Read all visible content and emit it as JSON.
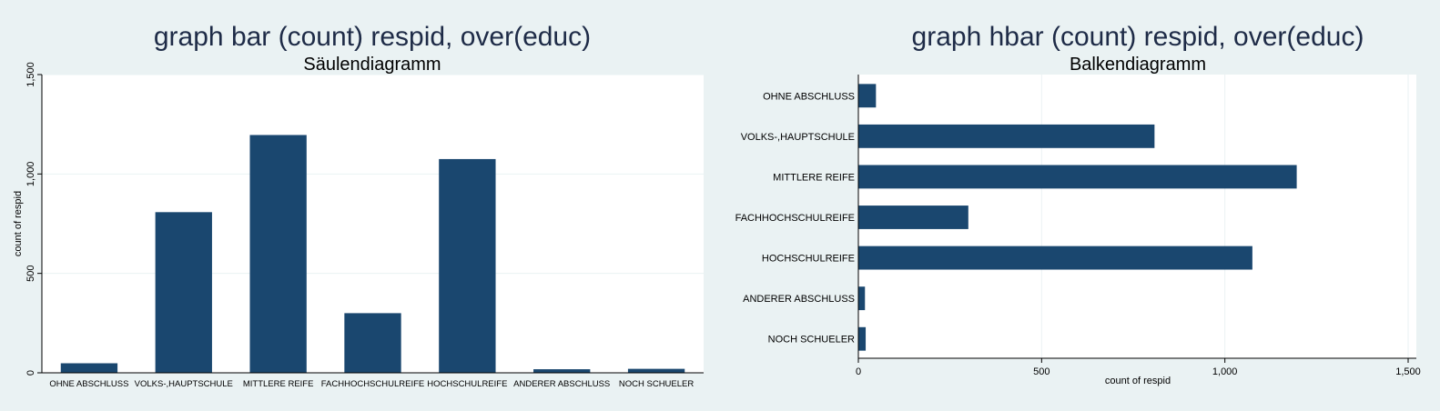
{
  "colors": {
    "background": "#eaf2f3",
    "plot_area": "#ffffff",
    "bar": "#1a476f",
    "grid": "#eaf2f3",
    "axis": "#000000",
    "text": "#000000",
    "title": "#1e2b47"
  },
  "chart_data": [
    {
      "type": "bar",
      "orientation": "vertical",
      "title": "graph bar (count) respid, over(educ)",
      "subtitle": "Säulendiagramm",
      "xlabel": "",
      "ylabel": "count of respid",
      "ylim": [
        0,
        1500
      ],
      "ticks": [
        0,
        500,
        1000,
        1500
      ],
      "tick_labels": [
        "0",
        "500",
        "1,000",
        "1,500"
      ],
      "grid": true,
      "categories": [
        "OHNE ABSCHLUSS",
        "VOLKS-,HAUPTSCHULE",
        "MITTLERE REIFE",
        "FACHHOCHSCHULREIFE",
        "HOCHSCHULREIFE",
        "ANDERER ABSCHLUSS",
        "NOCH SCHUELER"
      ],
      "values": [
        48,
        808,
        1196,
        300,
        1075,
        18,
        20
      ]
    },
    {
      "type": "bar",
      "orientation": "horizontal",
      "title": "graph hbar (count) respid, over(educ)",
      "subtitle": "Balkendiagramm",
      "xlabel": "count of respid",
      "ylabel": "",
      "xlim": [
        0,
        1500
      ],
      "ticks": [
        0,
        500,
        1000,
        1500
      ],
      "tick_labels": [
        "0",
        "500",
        "1,000",
        "1,500"
      ],
      "grid": true,
      "categories": [
        "OHNE ABSCHLUSS",
        "VOLKS-,HAUPTSCHULE",
        "MITTLERE REIFE",
        "FACHHOCHSCHULREIFE",
        "HOCHSCHULREIFE",
        "ANDERER ABSCHLUSS",
        "NOCH SCHUELER"
      ],
      "values": [
        48,
        808,
        1196,
        300,
        1075,
        18,
        20
      ]
    }
  ]
}
